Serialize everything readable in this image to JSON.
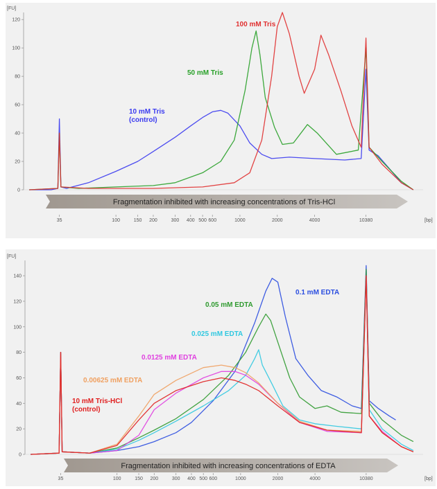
{
  "chart_data": [
    {
      "type": "line",
      "y_unit_label": "[FU]",
      "x_unit_label": "[bp]",
      "x_scale": "log",
      "y_ticks": [
        "0",
        "20",
        "40",
        "60",
        "80",
        "100",
        "120"
      ],
      "x_ticks": [
        {
          "v": 35,
          "label": "35"
        },
        {
          "v": 100,
          "label": "100"
        },
        {
          "v": 150,
          "label": "150"
        },
        {
          "v": 200,
          "label": "200"
        },
        {
          "v": 300,
          "label": "300"
        },
        {
          "v": 400,
          "label": "400"
        },
        {
          "v": 500,
          "label": "500"
        },
        {
          "v": 600,
          "label": "600"
        },
        {
          "v": 1000,
          "label": "1000"
        },
        {
          "v": 2000,
          "label": "2000"
        },
        {
          "v": 4000,
          "label": "4000"
        },
        {
          "v": 10380,
          "label": "10380"
        }
      ],
      "ylim": [
        0,
        125
      ],
      "xlim": [
        18,
        30000
      ],
      "arrow_text": "Fragmentation inhibited with increasing concentrations of Tris-HCl",
      "series": [
        {
          "name": "10 mM Tris (control)",
          "label_lines": [
            "10 mM Tris",
            "(control)"
          ],
          "color": "#3a3af0",
          "points": [
            [
              20,
              0
            ],
            [
              30,
              0
            ],
            [
              34,
              1
            ],
            [
              35,
              50
            ],
            [
              36,
              2
            ],
            [
              40,
              1
            ],
            [
              60,
              5
            ],
            [
              100,
              13
            ],
            [
              150,
              20
            ],
            [
              200,
              27
            ],
            [
              300,
              37
            ],
            [
              400,
              45
            ],
            [
              500,
              51
            ],
            [
              600,
              55
            ],
            [
              700,
              56
            ],
            [
              800,
              54
            ],
            [
              1000,
              45
            ],
            [
              1200,
              33
            ],
            [
              1500,
              25
            ],
            [
              1800,
              22
            ],
            [
              2500,
              23
            ],
            [
              4000,
              22
            ],
            [
              7000,
              21
            ],
            [
              9500,
              22
            ],
            [
              10380,
              85
            ],
            [
              11000,
              28
            ],
            [
              13000,
              24
            ],
            [
              16000,
              15
            ],
            [
              20000,
              5
            ],
            [
              25000,
              0
            ]
          ]
        },
        {
          "name": "50 mM Tris",
          "label_lines": [
            "50 mM Tris"
          ],
          "color": "#28a028",
          "points": [
            [
              20,
              0
            ],
            [
              34,
              1
            ],
            [
              35,
              40
            ],
            [
              36,
              2
            ],
            [
              50,
              1
            ],
            [
              100,
              2
            ],
            [
              200,
              3
            ],
            [
              300,
              5
            ],
            [
              500,
              12
            ],
            [
              700,
              20
            ],
            [
              900,
              35
            ],
            [
              1100,
              70
            ],
            [
              1250,
              100
            ],
            [
              1350,
              112
            ],
            [
              1450,
              95
            ],
            [
              1600,
              65
            ],
            [
              1900,
              44
            ],
            [
              2200,
              32
            ],
            [
              2700,
              33
            ],
            [
              3500,
              46
            ],
            [
              4200,
              40
            ],
            [
              6000,
              25
            ],
            [
              9000,
              28
            ],
            [
              10380,
              100
            ],
            [
              11000,
              30
            ],
            [
              14000,
              20
            ],
            [
              20000,
              6
            ],
            [
              25000,
              0
            ]
          ]
        },
        {
          "name": "100 mM Tris",
          "label_lines": [
            "100 mM Tris"
          ],
          "color": "#e03030",
          "points": [
            [
              20,
              0
            ],
            [
              34,
              1
            ],
            [
              35,
              40
            ],
            [
              36,
              2
            ],
            [
              60,
              1
            ],
            [
              200,
              1
            ],
            [
              500,
              2
            ],
            [
              900,
              5
            ],
            [
              1200,
              12
            ],
            [
              1500,
              35
            ],
            [
              1800,
              80
            ],
            [
              2000,
              115
            ],
            [
              2200,
              125
            ],
            [
              2500,
              110
            ],
            [
              3000,
              80
            ],
            [
              3300,
              68
            ],
            [
              4000,
              85
            ],
            [
              4500,
              109
            ],
            [
              5200,
              95
            ],
            [
              6500,
              70
            ],
            [
              8000,
              45
            ],
            [
              9500,
              30
            ],
            [
              10380,
              107
            ],
            [
              11000,
              30
            ],
            [
              14000,
              18
            ],
            [
              20000,
              5
            ],
            [
              25000,
              0
            ]
          ]
        }
      ]
    },
    {
      "type": "line",
      "y_unit_label": "[FU]",
      "x_unit_label": "[bp]",
      "x_scale": "log",
      "y_ticks": [
        "0",
        "20",
        "40",
        "60",
        "80",
        "100",
        "120",
        "140"
      ],
      "x_ticks": [
        {
          "v": 35,
          "label": "35"
        },
        {
          "v": 100,
          "label": "100"
        },
        {
          "v": 150,
          "label": "150"
        },
        {
          "v": 200,
          "label": "200"
        },
        {
          "v": 300,
          "label": "300"
        },
        {
          "v": 400,
          "label": "400"
        },
        {
          "v": 500,
          "label": "500"
        },
        {
          "v": 600,
          "label": "600"
        },
        {
          "v": 1000,
          "label": "1000"
        },
        {
          "v": 2000,
          "label": "2000"
        },
        {
          "v": 4000,
          "label": "4000"
        },
        {
          "v": 10380,
          "label": "10380"
        }
      ],
      "ylim": [
        0,
        152
      ],
      "xlim": [
        18,
        30000
      ],
      "arrow_text": "Fragmentation inhibited with increasing concentrations of EDTA",
      "series": [
        {
          "name": "0.1 mM EDTA",
          "label_lines": [
            "0.1 mM EDTA"
          ],
          "color": "#2a4de0",
          "points": [
            [
              20,
              0
            ],
            [
              34,
              1
            ],
            [
              35,
              80
            ],
            [
              36,
              2
            ],
            [
              60,
              1
            ],
            [
              100,
              3
            ],
            [
              150,
              6
            ],
            [
              200,
              10
            ],
            [
              300,
              17
            ],
            [
              400,
              25
            ],
            [
              600,
              42
            ],
            [
              900,
              65
            ],
            [
              1300,
              103
            ],
            [
              1600,
              128
            ],
            [
              1800,
              138
            ],
            [
              2000,
              135
            ],
            [
              2300,
              108
            ],
            [
              2800,
              75
            ],
            [
              3500,
              62
            ],
            [
              4500,
              50
            ],
            [
              6000,
              45
            ],
            [
              8000,
              38
            ],
            [
              9500,
              36
            ],
            [
              10380,
              148
            ],
            [
              11000,
              42
            ],
            [
              13000,
              36
            ],
            [
              16000,
              30
            ],
            [
              18000,
              27
            ]
          ]
        },
        {
          "name": "0.05 mM EDTA",
          "label_lines": [
            "0.05 mM EDTA"
          ],
          "color": "#2f9a2f",
          "points": [
            [
              20,
              0
            ],
            [
              34,
              1
            ],
            [
              35,
              80
            ],
            [
              36,
              2
            ],
            [
              60,
              1
            ],
            [
              100,
              5
            ],
            [
              150,
              13
            ],
            [
              200,
              19
            ],
            [
              300,
              28
            ],
            [
              500,
              43
            ],
            [
              800,
              62
            ],
            [
              1100,
              80
            ],
            [
              1400,
              100
            ],
            [
              1600,
              110
            ],
            [
              1750,
              105
            ],
            [
              2000,
              88
            ],
            [
              2500,
              60
            ],
            [
              3000,
              45
            ],
            [
              4000,
              36
            ],
            [
              5000,
              38
            ],
            [
              6500,
              33
            ],
            [
              9500,
              32
            ],
            [
              10380,
              145
            ],
            [
              11000,
              40
            ],
            [
              14000,
              27
            ],
            [
              20000,
              15
            ],
            [
              25000,
              10
            ]
          ]
        },
        {
          "name": "0.025 mM EDTA",
          "label_lines": [
            "0.025 mM EDTA"
          ],
          "color": "#30c8e0",
          "points": [
            [
              20,
              0
            ],
            [
              34,
              1
            ],
            [
              35,
              80
            ],
            [
              36,
              2
            ],
            [
              60,
              1
            ],
            [
              100,
              4
            ],
            [
              150,
              11
            ],
            [
              200,
              17
            ],
            [
              300,
              26
            ],
            [
              500,
              38
            ],
            [
              800,
              50
            ],
            [
              1100,
              62
            ],
            [
              1300,
              75
            ],
            [
              1400,
              82
            ],
            [
              1500,
              70
            ],
            [
              1800,
              55
            ],
            [
              2200,
              38
            ],
            [
              3000,
              27
            ],
            [
              4000,
              24
            ],
            [
              6000,
              22
            ],
            [
              9500,
              20
            ],
            [
              10380,
              140
            ],
            [
              11000,
              35
            ],
            [
              14000,
              20
            ],
            [
              20000,
              8
            ],
            [
              25000,
              3
            ]
          ]
        },
        {
          "name": "0.0125 mM EDTA",
          "label_lines": [
            "0.0125 mM EDTA"
          ],
          "color": "#e040e0",
          "points": [
            [
              20,
              0
            ],
            [
              34,
              1
            ],
            [
              35,
              80
            ],
            [
              36,
              2
            ],
            [
              60,
              1
            ],
            [
              100,
              3
            ],
            [
              150,
              15
            ],
            [
              200,
              35
            ],
            [
              300,
              48
            ],
            [
              500,
              60
            ],
            [
              700,
              65
            ],
            [
              900,
              65
            ],
            [
              1100,
              62
            ],
            [
              1400,
              55
            ],
            [
              2000,
              40
            ],
            [
              3000,
              25
            ],
            [
              5000,
              18
            ],
            [
              9500,
              17
            ],
            [
              10380,
              140
            ],
            [
              11000,
              30
            ],
            [
              14000,
              18
            ],
            [
              20000,
              6
            ],
            [
              25000,
              2
            ]
          ]
        },
        {
          "name": "0.00625 mM EDTA",
          "label_lines": [
            "0.00625 mM EDTA"
          ],
          "color": "#f0a060",
          "points": [
            [
              20,
              0
            ],
            [
              34,
              1
            ],
            [
              35,
              80
            ],
            [
              36,
              2
            ],
            [
              60,
              1
            ],
            [
              100,
              8
            ],
            [
              150,
              30
            ],
            [
              200,
              47
            ],
            [
              300,
              58
            ],
            [
              500,
              68
            ],
            [
              700,
              70
            ],
            [
              900,
              68
            ],
            [
              1100,
              64
            ],
            [
              1400,
              56
            ],
            [
              2000,
              40
            ],
            [
              3000,
              26
            ],
            [
              5000,
              19
            ],
            [
              9500,
              18
            ],
            [
              10380,
              140
            ],
            [
              11000,
              30
            ],
            [
              14000,
              17
            ],
            [
              20000,
              6
            ],
            [
              25000,
              2
            ]
          ]
        },
        {
          "name": "10 mM Tris-HCl (control)",
          "label_lines": [
            "10 mM Tris-HCl",
            "(control)"
          ],
          "color": "#e02020",
          "points": [
            [
              20,
              0
            ],
            [
              34,
              1
            ],
            [
              35,
              80
            ],
            [
              36,
              2
            ],
            [
              60,
              1
            ],
            [
              100,
              7
            ],
            [
              150,
              27
            ],
            [
              200,
              40
            ],
            [
              300,
              50
            ],
            [
              500,
              57
            ],
            [
              700,
              60
            ],
            [
              900,
              58
            ],
            [
              1100,
              55
            ],
            [
              1400,
              50
            ],
            [
              2000,
              38
            ],
            [
              3000,
              25
            ],
            [
              5000,
              19
            ],
            [
              9500,
              17
            ],
            [
              10380,
              140
            ],
            [
              11000,
              30
            ],
            [
              14000,
              17
            ],
            [
              20000,
              6
            ],
            [
              25000,
              2
            ]
          ]
        }
      ]
    }
  ]
}
